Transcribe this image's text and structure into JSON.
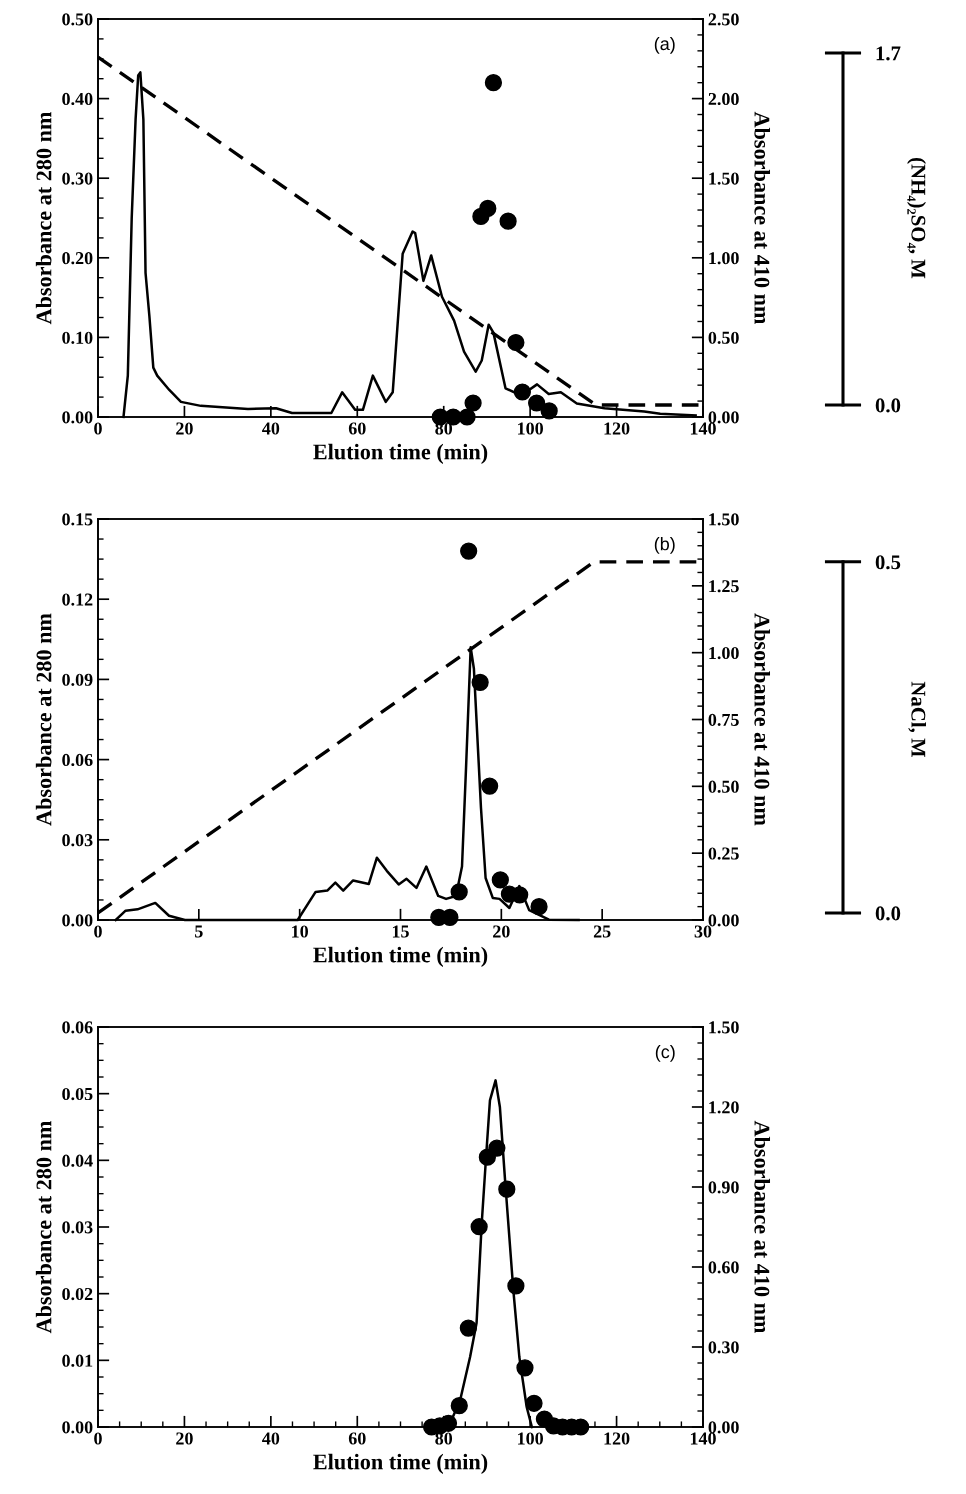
{
  "chart_data": [
    {
      "type": "line",
      "xlabel": "Elution time (min)",
      "ylabel": "Absorbance at 280 nm",
      "y2label": "Absorbance at 410 nm",
      "y3label": "(NH₄)₂SO₄, M",
      "annotations": [
        "(a)"
      ],
      "xlim": [
        0,
        140
      ],
      "xticks": [
        0,
        20,
        40,
        60,
        80,
        100,
        120,
        140
      ],
      "ylim": [
        0,
        0.5
      ],
      "yticks": [
        {
          "value": 0,
          "label": "0.00"
        },
        {
          "value": 0.1,
          "label": "0.10"
        },
        {
          "value": 0.2,
          "label": "0.20"
        },
        {
          "value": 0.3,
          "label": "0.30"
        },
        {
          "value": 0.4,
          "label": "0.40"
        },
        {
          "value": 0.5,
          "label": "0.50"
        }
      ],
      "y2lim": [
        0,
        2.5
      ],
      "y2ticks": [
        {
          "value": 0,
          "label": "0.00"
        },
        {
          "value": 0.5,
          "label": "0.50"
        },
        {
          "value": 1,
          "label": "1.00"
        },
        {
          "value": 1.5,
          "label": "1.50"
        },
        {
          "value": 2,
          "label": "2.00"
        },
        {
          "value": 2.5,
          "label": "2.50"
        }
      ],
      "y3lim": [
        -0.058,
        1.864
      ],
      "y3ticks": [
        {
          "value": 0,
          "label": "0.0"
        },
        {
          "value": 1.7,
          "label": "1.7"
        }
      ],
      "series": [
        {
          "color": "#000000",
          "line_style": "solid",
          "x": [
            5.9,
            6.9,
            7.8,
            8.7,
            9.3,
            9.8,
            10.5,
            11.0,
            11.9,
            12.8,
            13.7,
            16.5,
            19.2,
            23.8,
            34.7,
            41.2,
            44.9,
            54.0,
            56.5,
            59.5,
            61.3,
            63.6,
            66.6,
            68.2,
            70.5,
            72.8,
            73.4,
            75.3,
            77.1,
            79.6,
            82.4,
            84.7,
            87.4,
            88.8,
            90.4,
            91.5,
            94.3,
            97.9,
            101.6,
            104.3,
            107.1,
            110.8,
            117.2,
            126.4,
            130.1,
            138.3
          ],
          "values": [
            0.0,
            0.052,
            0.25,
            0.374,
            0.429,
            0.433,
            0.374,
            0.181,
            0.126,
            0.062,
            0.052,
            0.034,
            0.019,
            0.014,
            0.01,
            0.011,
            0.005,
            0.005,
            0.031,
            0.009,
            0.009,
            0.052,
            0.019,
            0.031,
            0.205,
            0.233,
            0.231,
            0.171,
            0.203,
            0.151,
            0.121,
            0.082,
            0.057,
            0.071,
            0.116,
            0.106,
            0.036,
            0.027,
            0.041,
            0.029,
            0.031,
            0.017,
            0.011,
            0.007,
            0.004,
            0.002
          ]
        },
        {
          "type": "scatter",
          "axis": "y2",
          "color": "#000000",
          "marker": "circle",
          "x": [
            79.2,
            82.2,
            85.4,
            86.8,
            88.6,
            90.2,
            91.5,
            94.9,
            96.7,
            98.2,
            101.5,
            104.4
          ],
          "values": [
            0.0,
            0.0,
            0.0,
            0.088,
            1.26,
            1.31,
            2.1,
            1.23,
            0.468,
            0.157,
            0.088,
            0.038
          ]
        },
        {
          "type": "line",
          "axis": "y3",
          "color": "#000000",
          "line_style": "dashed",
          "x": [
            0,
            115.2,
            140
          ],
          "values": [
            1.68,
            0.0,
            0.0
          ]
        }
      ]
    },
    {
      "type": "line",
      "xlabel": "Elution time (min)",
      "ylabel": "Absorbance at 280 nm",
      "y2label": "Absorbance at 410 nm",
      "y3label": "NaCl, M",
      "annotations": [
        "(b)"
      ],
      "xlim": [
        0,
        30
      ],
      "xticks": [
        0,
        5,
        10,
        15,
        20,
        25,
        30
      ],
      "ylim": [
        0,
        0.15
      ],
      "yticks": [
        {
          "value": 0,
          "label": "0.00"
        },
        {
          "value": 0.03,
          "label": "0.03"
        },
        {
          "value": 0.06,
          "label": "0.06"
        },
        {
          "value": 0.09,
          "label": "0.09"
        },
        {
          "value": 0.12,
          "label": "0.12"
        },
        {
          "value": 0.15,
          "label": "0.15"
        }
      ],
      "y2lim": [
        0,
        1.5
      ],
      "y2ticks": [
        {
          "value": 0,
          "label": "0.00"
        },
        {
          "value": 0.25,
          "label": "0.25"
        },
        {
          "value": 0.5,
          "label": "0.50"
        },
        {
          "value": 0.75,
          "label": "0.75"
        },
        {
          "value": 1,
          "label": "1.00"
        },
        {
          "value": 1.25,
          "label": "1.25"
        },
        {
          "value": 1.5,
          "label": "1.50"
        }
      ],
      "y3lim": [
        -0.01,
        0.561
      ],
      "y3ticks": [
        {
          "value": 0,
          "label": "0.0"
        },
        {
          "value": 0.5,
          "label": "0.5"
        }
      ],
      "series": [
        {
          "color": "#000000",
          "line_style": "solid",
          "x": [
            0.88,
            1.37,
            1.96,
            2.84,
            3.52,
            4.31,
            9.9,
            10.79,
            11.37,
            11.77,
            12.16,
            12.65,
            13.43,
            13.83,
            14.32,
            14.91,
            15.3,
            15.79,
            16.28,
            16.87,
            17.26,
            17.75,
            18.05,
            18.25,
            18.48,
            18.64,
            18.99,
            19.22,
            19.58,
            19.91,
            20.4,
            20.89,
            21.38,
            22.36,
            23.83
          ],
          "values": [
            0.0,
            0.0035,
            0.004,
            0.0064,
            0.0016,
            0.0,
            0.0,
            0.0105,
            0.011,
            0.014,
            0.011,
            0.0148,
            0.0135,
            0.0233,
            0.0184,
            0.0133,
            0.0154,
            0.012,
            0.02,
            0.009,
            0.0079,
            0.009,
            0.02,
            0.057,
            0.102,
            0.094,
            0.042,
            0.0157,
            0.0082,
            0.0079,
            0.0045,
            0.0127,
            0.0037,
            0.0001,
            0.0
          ]
        },
        {
          "type": "scatter",
          "axis": "y2",
          "color": "#000000",
          "marker": "circle",
          "x": [
            16.9,
            17.45,
            17.91,
            18.38,
            18.95,
            19.42,
            19.95,
            20.4,
            20.91,
            21.87
          ],
          "values": [
            0.01,
            0.01,
            0.105,
            1.38,
            0.889,
            0.501,
            0.15,
            0.097,
            0.094,
            0.05
          ]
        },
        {
          "type": "line",
          "axis": "y3",
          "color": "#000000",
          "line_style": "dashed",
          "x": [
            0,
            24.6,
            30
          ],
          "values": [
            0.0,
            0.5,
            0.5
          ]
        }
      ]
    },
    {
      "type": "line",
      "xlabel": "Elution time (min)",
      "ylabel": "Absorbance at 280 nm",
      "y2label": "Absorbance at 410 nm",
      "annotations": [
        "(c)"
      ],
      "xlim": [
        0,
        140
      ],
      "xticks": [
        0,
        20,
        40,
        60,
        80,
        100,
        120,
        140
      ],
      "ylim": [
        0,
        0.06
      ],
      "yticks": [
        {
          "value": 0,
          "label": "0.00"
        },
        {
          "value": 0.01,
          "label": "0.01"
        },
        {
          "value": 0.02,
          "label": "0.02"
        },
        {
          "value": 0.03,
          "label": "0.03"
        },
        {
          "value": 0.04,
          "label": "0.04"
        },
        {
          "value": 0.05,
          "label": "0.05"
        },
        {
          "value": 0.06,
          "label": "0.06"
        }
      ],
      "y2lim": [
        0,
        1.5
      ],
      "y2ticks": [
        {
          "value": 0,
          "label": "0.00"
        },
        {
          "value": 0.3,
          "label": "0.30"
        },
        {
          "value": 0.6,
          "label": "0.60"
        },
        {
          "value": 0.9,
          "label": "0.90"
        },
        {
          "value": 1.2,
          "label": "1.20"
        },
        {
          "value": 1.5,
          "label": "1.50"
        }
      ],
      "series": [
        {
          "color": "#000000",
          "line_style": "solid",
          "x": [
            76.8,
            81.5,
            83.8,
            86.1,
            87.6,
            88.8,
            89.8,
            90.7,
            92.0,
            93.0,
            94.2,
            96.1,
            97.5,
            99.2,
            100.4
          ],
          "values": [
            0.0,
            0.0006,
            0.004,
            0.0105,
            0.0156,
            0.0306,
            0.0405,
            0.049,
            0.052,
            0.048,
            0.037,
            0.0206,
            0.0105,
            0.003,
            0.0
          ]
        },
        {
          "type": "scatter",
          "axis": "y2",
          "color": "#000000",
          "marker": "circle",
          "x": [
            77.2,
            79.1,
            81.1,
            83.6,
            85.7,
            88.2,
            90.1,
            92.3,
            94.6,
            96.7,
            98.8,
            100.9,
            103.3,
            105.4,
            107.5,
            109.6,
            111.7
          ],
          "values": [
            0.0,
            0.004,
            0.014,
            0.08,
            0.371,
            0.751,
            1.012,
            1.046,
            0.892,
            0.529,
            0.222,
            0.089,
            0.03,
            0.004,
            0.0,
            0.0,
            0.0
          ]
        }
      ]
    }
  ]
}
